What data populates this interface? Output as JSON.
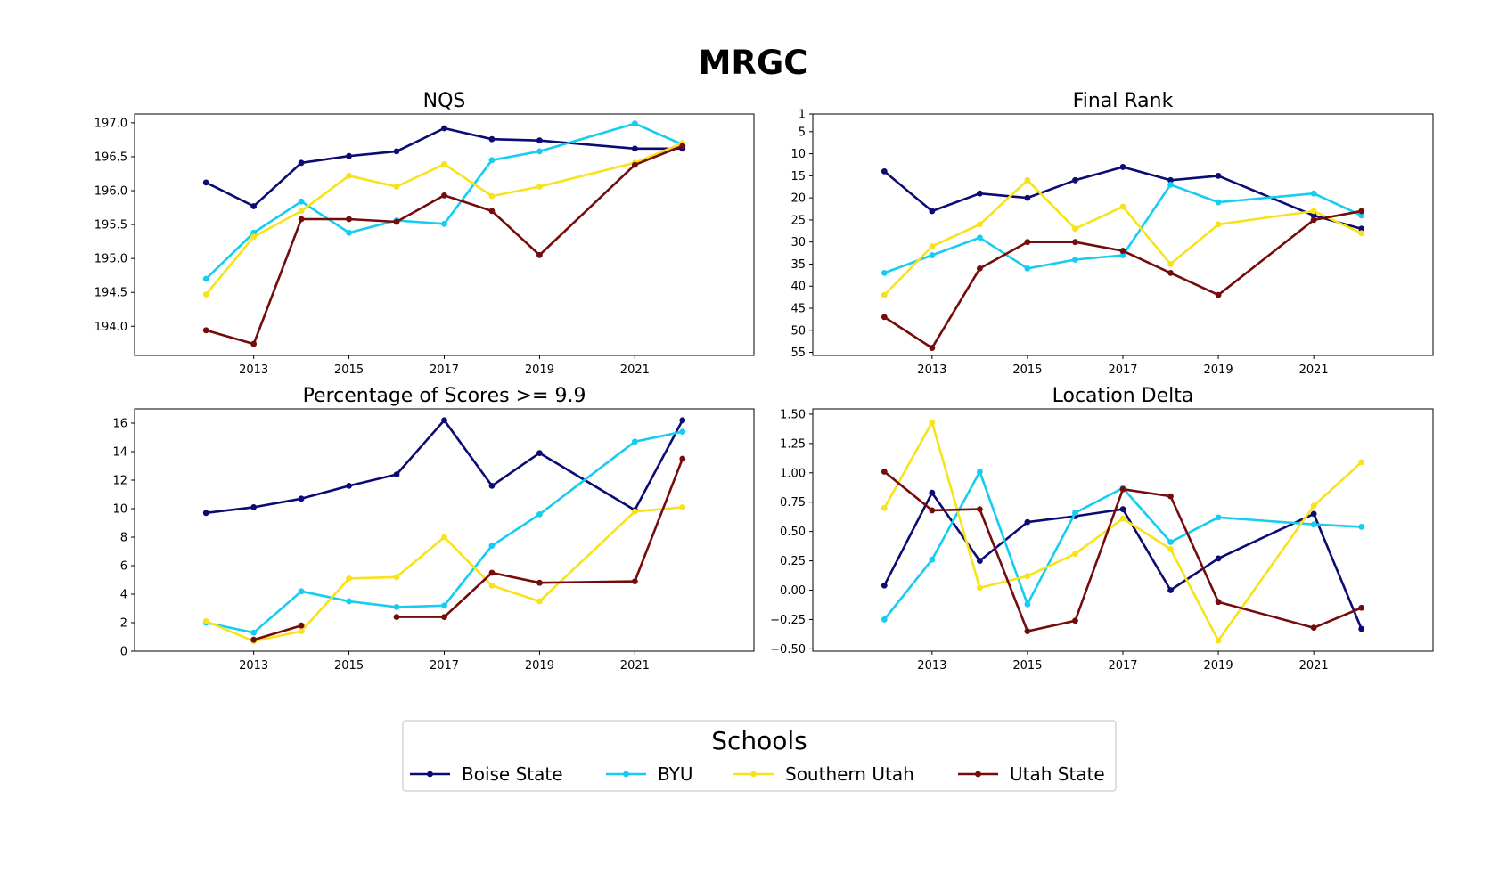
{
  "figure_title": "MRGC",
  "legend": {
    "title": "Schools",
    "placement": "bottom-center"
  },
  "colors": {
    "Boise State": "#0b0b73",
    "BYU": "#14cdf0",
    "Southern Utah": "#f8e21a",
    "Utah State": "#740c0c"
  },
  "chart_data": [
    {
      "type": "line",
      "title": "NQS",
      "x": [
        2012,
        2013,
        2014,
        2015,
        2016,
        2017,
        2018,
        2019,
        2021,
        2022
      ],
      "xticks": [
        2013,
        2015,
        2017,
        2019,
        2021
      ],
      "xlim": [
        2010.5,
        2023.5
      ],
      "ylim": [
        193.57,
        197.13
      ],
      "yticks": [
        194.0,
        194.5,
        195.0,
        195.5,
        196.0,
        196.5,
        197.0
      ],
      "ytick_labels": [
        "194.0",
        "194.5",
        "195.0",
        "195.5",
        "196.0",
        "196.5",
        "197.0"
      ],
      "inverted": false,
      "series": [
        {
          "name": "Boise State",
          "values": [
            196.12,
            195.77,
            196.41,
            196.51,
            196.58,
            196.92,
            196.76,
            196.74,
            196.62,
            196.62
          ]
        },
        {
          "name": "BYU",
          "values": [
            194.7,
            195.38,
            195.84,
            195.38,
            195.56,
            195.51,
            196.45,
            196.58,
            196.99,
            196.68
          ]
        },
        {
          "name": "Southern Utah",
          "values": [
            194.47,
            195.32,
            195.7,
            196.22,
            196.06,
            196.39,
            195.92,
            196.06,
            196.41,
            196.7
          ]
        },
        {
          "name": "Utah State",
          "values": [
            193.94,
            193.74,
            195.58,
            195.58,
            195.54,
            195.93,
            195.7,
            195.05,
            196.38,
            196.66
          ]
        }
      ]
    },
    {
      "type": "line",
      "title": "Final Rank",
      "x": [
        2012,
        2013,
        2014,
        2015,
        2016,
        2017,
        2018,
        2019,
        2021,
        2022
      ],
      "xticks": [
        2013,
        2015,
        2017,
        2019,
        2021
      ],
      "xlim": [
        2010.5,
        2023.5
      ],
      "ylim": [
        55.7,
        1
      ],
      "yticks": [
        1,
        5,
        10,
        15,
        20,
        25,
        30,
        35,
        40,
        45,
        50,
        55
      ],
      "ytick_labels": [
        "1",
        "5",
        "10",
        "15",
        "20",
        "25",
        "30",
        "35",
        "40",
        "45",
        "50",
        "55"
      ],
      "inverted": true,
      "series": [
        {
          "name": "Boise State",
          "values": [
            14,
            23,
            19,
            20,
            16,
            13,
            16,
            15,
            24,
            27
          ]
        },
        {
          "name": "BYU",
          "values": [
            37,
            33,
            29,
            36,
            34,
            33,
            17,
            21,
            19,
            24
          ]
        },
        {
          "name": "Southern Utah",
          "values": [
            42,
            31,
            26,
            16,
            27,
            22,
            35,
            26,
            23,
            28
          ]
        },
        {
          "name": "Utah State",
          "values": [
            47,
            54,
            36,
            30,
            30,
            32,
            37,
            42,
            25,
            23
          ]
        }
      ]
    },
    {
      "type": "line",
      "title": "Percentage of Scores >= 9.9",
      "x": [
        2012,
        2013,
        2014,
        2015,
        2016,
        2017,
        2018,
        2019,
        2021,
        2022
      ],
      "xticks": [
        2013,
        2015,
        2017,
        2019,
        2021
      ],
      "xlim": [
        2010.5,
        2023.5
      ],
      "ylim": [
        0,
        17.0
      ],
      "yticks": [
        0,
        2,
        4,
        6,
        8,
        10,
        12,
        14,
        16
      ],
      "ytick_labels": [
        "0",
        "2",
        "4",
        "6",
        "8",
        "10",
        "12",
        "14",
        "16"
      ],
      "inverted": false,
      "series": [
        {
          "name": "Boise State",
          "values": [
            9.7,
            10.1,
            10.7,
            11.6,
            12.4,
            16.2,
            11.6,
            13.9,
            9.9,
            16.2
          ]
        },
        {
          "name": "BYU",
          "values": [
            2.0,
            1.3,
            4.2,
            3.5,
            3.1,
            3.2,
            7.4,
            9.6,
            14.7,
            15.4
          ]
        },
        {
          "name": "Southern Utah",
          "values": [
            2.1,
            0.7,
            1.4,
            5.1,
            5.2,
            8.0,
            4.6,
            3.5,
            9.8,
            10.1
          ]
        },
        {
          "name": "Utah State",
          "values": [
            null,
            0.8,
            1.8,
            null,
            2.4,
            2.4,
            5.5,
            4.8,
            4.9,
            13.5
          ]
        }
      ]
    },
    {
      "type": "line",
      "title": "Location Delta",
      "x": [
        2012,
        2013,
        2014,
        2015,
        2016,
        2017,
        2018,
        2019,
        2021,
        2022
      ],
      "xticks": [
        2013,
        2015,
        2017,
        2019,
        2021
      ],
      "xlim": [
        2010.5,
        2023.5
      ],
      "ylim": [
        -0.52,
        1.545
      ],
      "yticks": [
        -0.5,
        -0.25,
        0.0,
        0.25,
        0.5,
        0.75,
        1.0,
        1.25,
        1.5
      ],
      "ytick_labels": [
        "−0.50",
        "−0.25",
        "0.00",
        "0.25",
        "0.50",
        "0.75",
        "1.00",
        "1.25",
        "1.50"
      ],
      "inverted": false,
      "series": [
        {
          "name": "Boise State",
          "values": [
            0.04,
            0.83,
            0.25,
            0.58,
            0.63,
            0.69,
            0.0,
            0.27,
            0.65,
            -0.33
          ]
        },
        {
          "name": "BYU",
          "values": [
            -0.25,
            0.26,
            1.01,
            -0.12,
            0.66,
            0.87,
            0.41,
            0.62,
            0.56,
            0.54
          ]
        },
        {
          "name": "Southern Utah",
          "values": [
            0.7,
            1.43,
            0.02,
            0.12,
            0.31,
            0.61,
            0.35,
            -0.43,
            0.72,
            1.09
          ]
        },
        {
          "name": "Utah State",
          "values": [
            1.01,
            0.68,
            0.69,
            -0.35,
            -0.26,
            0.86,
            0.8,
            -0.1,
            -0.32,
            -0.15
          ]
        }
      ]
    }
  ]
}
